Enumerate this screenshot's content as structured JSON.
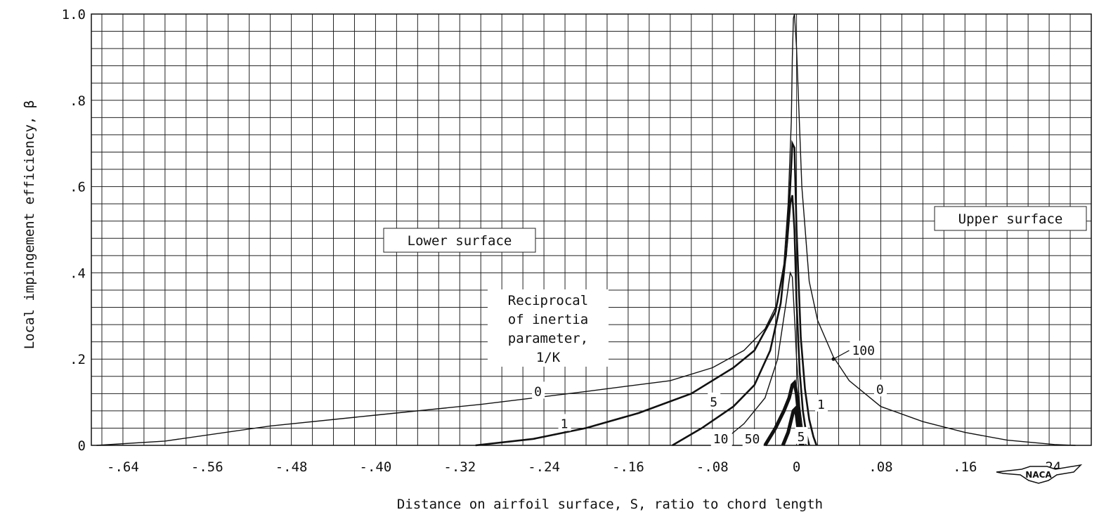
{
  "chart_data": {
    "type": "line",
    "xlabel": "Distance on airfoil surface, S, ratio to chord length",
    "ylabel": "Local impingement efficiency, β",
    "xlim": [
      -0.67,
      0.28
    ],
    "ylim": [
      0,
      1.0
    ],
    "x_ticks": [
      -0.64,
      -0.56,
      -0.48,
      -0.4,
      -0.32,
      -0.24,
      -0.16,
      -0.08,
      0,
      0.08,
      0.16,
      0.24
    ],
    "x_tick_labels": [
      "-.64",
      "-.56",
      "-.48",
      "-.40",
      "-.32",
      "-.24",
      "-.16",
      "-.08",
      "0",
      ".08",
      ".16",
      ".24"
    ],
    "y_ticks": [
      0,
      0.2,
      0.4,
      0.6,
      0.8,
      1.0
    ],
    "y_tick_labels": [
      "0",
      ".2",
      ".4",
      ".6",
      ".8",
      "1.0"
    ],
    "grid": true,
    "annotations": {
      "lower_surface": "Lower surface",
      "upper_surface": "Upper surface",
      "legend_title": [
        "Reciprocal",
        "of inertia",
        "parameter,",
        "1/K"
      ],
      "logo": "NACA"
    },
    "series": [
      {
        "name": "0",
        "x": [
          -0.665,
          -0.6,
          -0.5,
          -0.4,
          -0.3,
          -0.2,
          -0.12,
          -0.08,
          -0.05,
          -0.03,
          -0.018,
          -0.012,
          -0.008,
          -0.005,
          -0.004,
          -0.003,
          -0.002,
          0.0,
          0.005,
          0.012,
          0.02,
          0.035,
          0.05,
          0.08,
          0.12,
          0.16,
          0.2,
          0.245,
          0.265
        ],
        "y": [
          0.0,
          0.01,
          0.045,
          0.07,
          0.095,
          0.125,
          0.15,
          0.18,
          0.22,
          0.27,
          0.33,
          0.42,
          0.56,
          0.75,
          0.9,
          0.99,
          1.0,
          0.92,
          0.6,
          0.38,
          0.29,
          0.205,
          0.15,
          0.09,
          0.055,
          0.03,
          0.012,
          0.002,
          0.0
        ]
      },
      {
        "name": "1",
        "x": [
          -0.305,
          -0.25,
          -0.2,
          -0.15,
          -0.1,
          -0.06,
          -0.04,
          -0.02,
          -0.01,
          -0.006,
          -0.004,
          -0.002,
          0.0,
          0.004,
          0.008,
          0.012,
          0.016,
          0.019
        ],
        "y": [
          0.0,
          0.015,
          0.04,
          0.075,
          0.12,
          0.18,
          0.22,
          0.31,
          0.44,
          0.6,
          0.7,
          0.69,
          0.5,
          0.25,
          0.13,
          0.06,
          0.02,
          0.0
        ]
      },
      {
        "name": "5",
        "x": [
          -0.118,
          -0.09,
          -0.06,
          -0.04,
          -0.025,
          -0.015,
          -0.009,
          -0.006,
          -0.004,
          -0.002,
          0.0,
          0.003,
          0.006,
          0.009,
          0.012
        ],
        "y": [
          0.0,
          0.04,
          0.09,
          0.14,
          0.22,
          0.33,
          0.47,
          0.56,
          0.58,
          0.5,
          0.33,
          0.17,
          0.08,
          0.03,
          0.0
        ]
      },
      {
        "name": "10",
        "x": [
          -0.075,
          -0.05,
          -0.03,
          -0.018,
          -0.01,
          -0.006,
          -0.004,
          -0.002,
          0.0,
          0.003,
          0.006,
          0.009
        ],
        "y": [
          0.0,
          0.05,
          0.11,
          0.2,
          0.33,
          0.4,
          0.39,
          0.3,
          0.2,
          0.09,
          0.03,
          0.0
        ]
      },
      {
        "name": "50",
        "x": [
          -0.03,
          -0.02,
          -0.012,
          -0.007,
          -0.004,
          -0.002,
          0.0,
          0.002,
          0.004,
          0.006
        ],
        "y": [
          0.0,
          0.04,
          0.08,
          0.11,
          0.14,
          0.145,
          0.12,
          0.07,
          0.025,
          0.0
        ]
      },
      {
        "name": "100",
        "x": [
          -0.013,
          -0.008,
          -0.005,
          -0.003,
          -0.001,
          0.0,
          0.002,
          0.004
        ],
        "y": [
          0.0,
          0.03,
          0.06,
          0.08,
          0.085,
          0.07,
          0.03,
          0.0
        ]
      }
    ]
  }
}
